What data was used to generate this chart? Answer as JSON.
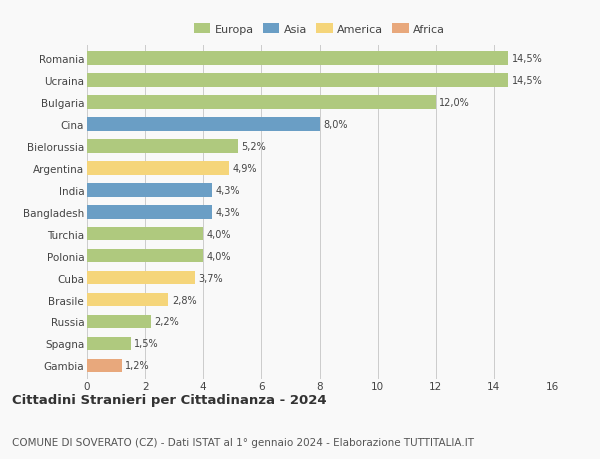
{
  "countries": [
    "Romania",
    "Ucraina",
    "Bulgaria",
    "Cina",
    "Bielorussia",
    "Argentina",
    "India",
    "Bangladesh",
    "Turchia",
    "Polonia",
    "Cuba",
    "Brasile",
    "Russia",
    "Spagna",
    "Gambia"
  ],
  "values": [
    14.5,
    14.5,
    12.0,
    8.0,
    5.2,
    4.9,
    4.3,
    4.3,
    4.0,
    4.0,
    3.7,
    2.8,
    2.2,
    1.5,
    1.2
  ],
  "labels": [
    "14,5%",
    "14,5%",
    "12,0%",
    "8,0%",
    "5,2%",
    "4,9%",
    "4,3%",
    "4,3%",
    "4,0%",
    "4,0%",
    "3,7%",
    "2,8%",
    "2,2%",
    "1,5%",
    "1,2%"
  ],
  "continents": [
    "Europa",
    "Europa",
    "Europa",
    "Asia",
    "Europa",
    "America",
    "Asia",
    "Asia",
    "Europa",
    "Europa",
    "America",
    "America",
    "Europa",
    "Europa",
    "Africa"
  ],
  "colors": {
    "Europa": "#afc97e",
    "Asia": "#6a9ec5",
    "America": "#f5d57a",
    "Africa": "#e8a87c"
  },
  "legend_order": [
    "Europa",
    "Asia",
    "America",
    "Africa"
  ],
  "xlim": [
    0,
    16
  ],
  "xticks": [
    0,
    2,
    4,
    6,
    8,
    10,
    12,
    14,
    16
  ],
  "title": "Cittadini Stranieri per Cittadinanza - 2024",
  "subtitle": "COMUNE DI SOVERATO (CZ) - Dati ISTAT al 1° gennaio 2024 - Elaborazione TUTTITALIA.IT",
  "bg_color": "#f9f9f9",
  "grid_color": "#cccccc",
  "bar_height": 0.62,
  "title_fontsize": 9.5,
  "subtitle_fontsize": 7.5,
  "label_fontsize": 7,
  "tick_fontsize": 7.5,
  "legend_fontsize": 8
}
